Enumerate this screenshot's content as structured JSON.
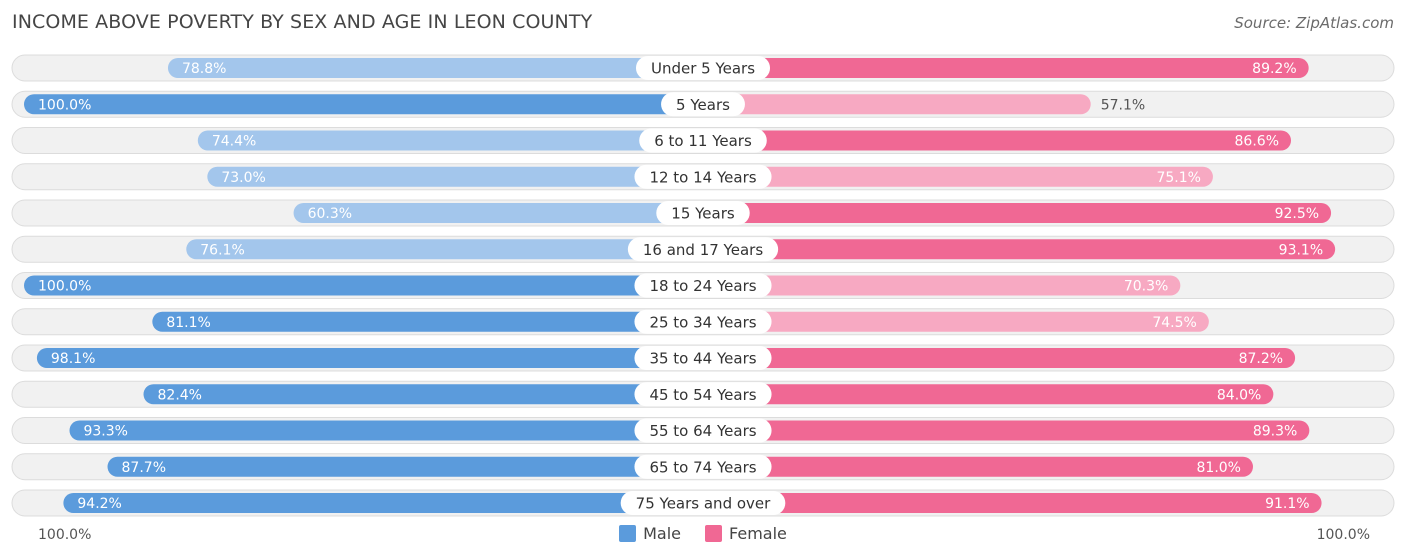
{
  "header": {
    "title": "INCOME ABOVE POVERTY BY SEX AND AGE IN LEON COUNTY",
    "source": "Source: ZipAtlas.com"
  },
  "axis": {
    "left_label": "100.0%",
    "right_label": "100.0%"
  },
  "legend": {
    "male_label": "Male",
    "female_label": "Female"
  },
  "colors": {
    "male_strong": "#5b9bdc",
    "male_light": "#a3c6ec",
    "female_strong": "#f06894",
    "female_light": "#f7a9c2"
  },
  "chart_data": {
    "type": "bar",
    "orientation": "horizontal-diverging",
    "title": "INCOME ABOVE POVERTY BY SEX AND AGE IN LEON COUNTY",
    "xlim": [
      0,
      100
    ],
    "categories": [
      "Under 5 Years",
      "5 Years",
      "6 to 11 Years",
      "12 to 14 Years",
      "15 Years",
      "16 and 17 Years",
      "18 to 24 Years",
      "25 to 34 Years",
      "35 to 44 Years",
      "45 to 54 Years",
      "55 to 64 Years",
      "65 to 74 Years",
      "75 Years and over"
    ],
    "series": [
      {
        "name": "Male",
        "values": [
          78.8,
          100.0,
          74.4,
          73.0,
          60.3,
          76.1,
          100.0,
          81.1,
          98.1,
          82.4,
          93.3,
          87.7,
          94.2
        ],
        "labels": [
          "78.8%",
          "100.0%",
          "74.4%",
          "73.0%",
          "60.3%",
          "76.1%",
          "100.0%",
          "81.1%",
          "98.1%",
          "82.4%",
          "93.3%",
          "87.7%",
          "94.2%"
        ]
      },
      {
        "name": "Female",
        "values": [
          89.2,
          57.1,
          86.6,
          75.1,
          92.5,
          93.1,
          70.3,
          74.5,
          87.2,
          84.0,
          89.3,
          81.0,
          91.1
        ],
        "labels": [
          "89.2%",
          "57.1%",
          "86.6%",
          "75.1%",
          "92.5%",
          "93.1%",
          "70.3%",
          "74.5%",
          "87.2%",
          "84.0%",
          "89.3%",
          "81.0%",
          "91.1%"
        ]
      }
    ]
  }
}
